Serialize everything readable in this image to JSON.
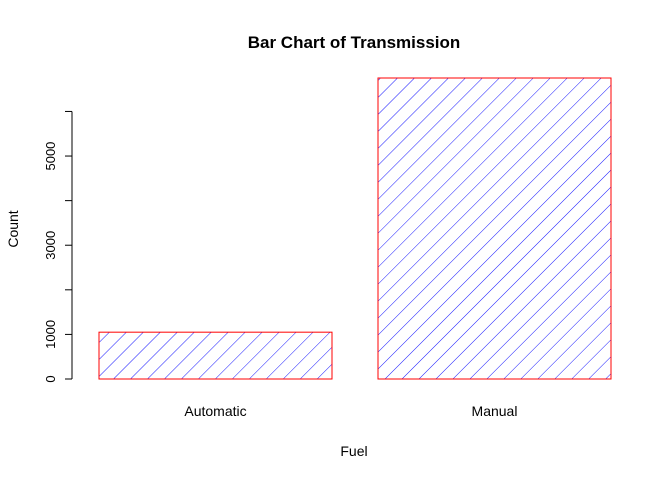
{
  "chart_data": {
    "type": "bar",
    "title": "Bar Chart of Transmission",
    "xlabel": "Fuel",
    "ylabel": "Count",
    "categories": [
      "Automatic",
      "Manual"
    ],
    "values": [
      1050,
      6750
    ],
    "ylim": [
      0,
      6750
    ],
    "y_ticks": [
      0,
      1000,
      2000,
      3000,
      4000,
      5000,
      6000
    ],
    "y_tick_labels": [
      "0",
      "1000",
      "",
      "3000",
      "",
      "5000",
      ""
    ],
    "bar_border_color": "#ff0000",
    "hatch_color": "#0000ff",
    "grid": false,
    "legend": "none"
  }
}
